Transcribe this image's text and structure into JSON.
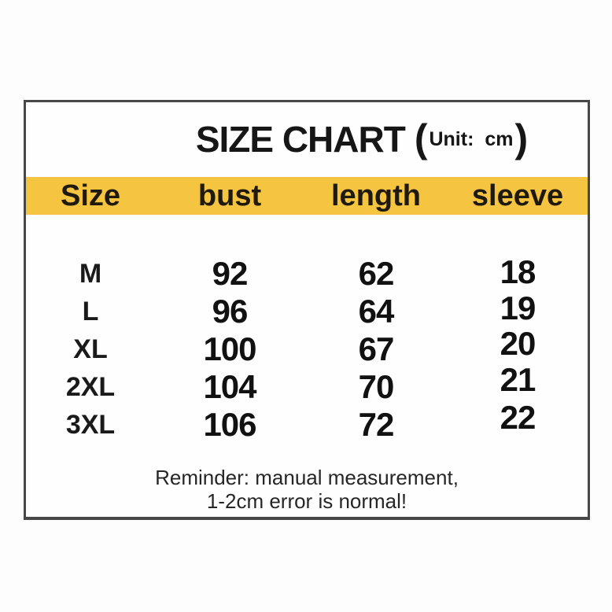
{
  "title": {
    "main": "SIZE CHART",
    "paren_open": "(",
    "unit_label": "Unit:",
    "unit_value": "cm",
    "paren_close": ")"
  },
  "table": {
    "headers": [
      "Size",
      "bust",
      "length",
      "sleeve"
    ],
    "rows": [
      {
        "size": "M",
        "bust": "92",
        "length": "62",
        "sleeve": "18"
      },
      {
        "size": "L",
        "bust": "96",
        "length": "64",
        "sleeve": "19"
      },
      {
        "size": "XL",
        "bust": "100",
        "length": "67",
        "sleeve": "20"
      },
      {
        "size": "2XL",
        "bust": "104",
        "length": "70",
        "sleeve": "21"
      },
      {
        "size": "3XL",
        "bust": "106",
        "length": "72",
        "sleeve": "22"
      }
    ]
  },
  "footer": {
    "line1": "Reminder: manual measurement,",
    "line2": "1-2cm error is normal!"
  },
  "colors": {
    "header_band": "#f5c440",
    "frame_border": "#474747",
    "text": "#161616"
  },
  "chart_data": {
    "type": "table",
    "title": "SIZE CHART (Unit: cm)",
    "columns": [
      "Size",
      "bust",
      "length",
      "sleeve"
    ],
    "rows": [
      [
        "M",
        92,
        62,
        18
      ],
      [
        "L",
        96,
        64,
        19
      ],
      [
        "XL",
        100,
        67,
        20
      ],
      [
        "2XL",
        104,
        70,
        21
      ],
      [
        "3XL",
        106,
        72,
        22
      ]
    ],
    "note": "Reminder: manual measurement, 1-2cm error is normal!"
  }
}
